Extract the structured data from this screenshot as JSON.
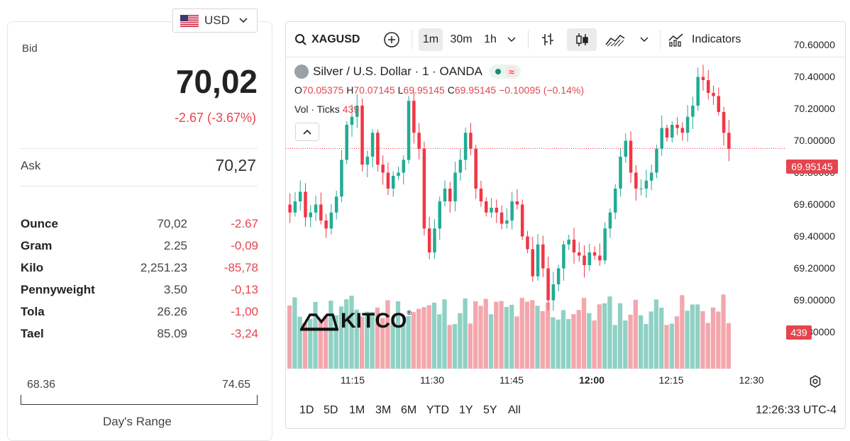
{
  "currency": {
    "code": "USD",
    "icon": "us-flag-icon"
  },
  "quote": {
    "bid_label": "Bid",
    "bid": "70,02",
    "bid_change": "-2.67 (-3.67%)",
    "ask_label": "Ask",
    "ask": "70,27"
  },
  "units": [
    {
      "name": "Ounce",
      "value": "70,02",
      "change": "-2.67"
    },
    {
      "name": "Gram",
      "value": "2.25",
      "change": "-0,09"
    },
    {
      "name": "Kilo",
      "value": "2,251.23",
      "change": "-85,78"
    },
    {
      "name": "Pennyweight",
      "value": "3.50",
      "change": "-0,13"
    },
    {
      "name": "Tola",
      "value": "26.26",
      "change": "-1,00"
    },
    {
      "name": "Tael",
      "value": "85.09",
      "change": "-3,24"
    }
  ],
  "day_range": {
    "low": "68.36",
    "high": "74.65",
    "label": "Day's Range"
  },
  "toolbar": {
    "symbol": "XAGUSD",
    "intervals": [
      "1m",
      "30m",
      "1h"
    ],
    "active_interval": "1m",
    "indicators_label": "Indicators"
  },
  "legend": {
    "title": "Silver / U.S. Dollar · 1 · OANDA",
    "delay_symbol": "≈",
    "o_label": "O",
    "o": "70.05375",
    "h_label": "H",
    "h": "70.07145",
    "l_label": "L",
    "l": "69.95145",
    "c_label": "C",
    "c": "69.95145",
    "change": "−0.10095 (−0.14%)",
    "vol_label": "Vol · Ticks",
    "vol": "439"
  },
  "watermark": {
    "text": "KITCO",
    "mark": "®"
  },
  "price_tag": "69.95145",
  "volume_tag": "439",
  "bottom": {
    "ranges": [
      "1D",
      "5D",
      "1M",
      "3M",
      "6M",
      "YTD",
      "1Y",
      "5Y",
      "All"
    ],
    "clock": "12:26:33 UTC-4"
  },
  "colors": {
    "up": "#22ab94",
    "down": "#f23645",
    "vol_up": "#8fd1c4",
    "vol_down": "#f3a7ad",
    "accent_red": "#e5454f"
  },
  "chart_data": {
    "type": "candlestick",
    "symbol": "XAGUSD",
    "interval": "1m",
    "ylim": [
      68.7,
      70.62
    ],
    "yticks": [
      "70.60000",
      "70.40000",
      "70.20000",
      "70.00000",
      "69.80000",
      "69.60000",
      "69.40000",
      "69.20000",
      "69.00000",
      "68.80000"
    ],
    "x_ticks": [
      {
        "label": "11:15",
        "bold": false
      },
      {
        "label": "11:30",
        "bold": false
      },
      {
        "label": "11:45",
        "bold": false
      },
      {
        "label": "12:00",
        "bold": true
      },
      {
        "label": "12:15",
        "bold": false
      },
      {
        "label": "12:30",
        "bold": false
      }
    ],
    "last_price": 69.95145,
    "close": [
      69.55,
      69.62,
      69.68,
      69.52,
      69.55,
      69.6,
      69.5,
      69.45,
      69.55,
      69.65,
      69.88,
      70.1,
      70.15,
      70.22,
      69.85,
      69.9,
      70.05,
      69.85,
      69.8,
      69.7,
      69.78,
      69.8,
      69.88,
      70.25,
      70.05,
      69.95,
      69.45,
      69.3,
      69.45,
      69.62,
      69.7,
      69.62,
      69.8,
      69.88,
      70.05,
      69.95,
      69.7,
      69.62,
      69.55,
      69.58,
      69.55,
      69.48,
      69.5,
      69.62,
      69.6,
      69.4,
      69.32,
      69.15,
      69.35,
      69.2,
      69.0,
      69.1,
      69.2,
      69.35,
      69.38,
      69.3,
      69.28,
      69.22,
      69.3,
      69.28,
      69.25,
      69.45,
      69.55,
      69.7,
      69.9,
      70.0,
      69.8,
      69.7,
      69.7,
      69.75,
      69.8,
      69.95,
      70.08,
      70.02,
      70.1,
      70.08,
      70.05,
      70.15,
      70.22,
      70.4,
      70.38,
      70.3,
      70.28,
      70.18,
      70.05,
      69.95
    ]
  }
}
